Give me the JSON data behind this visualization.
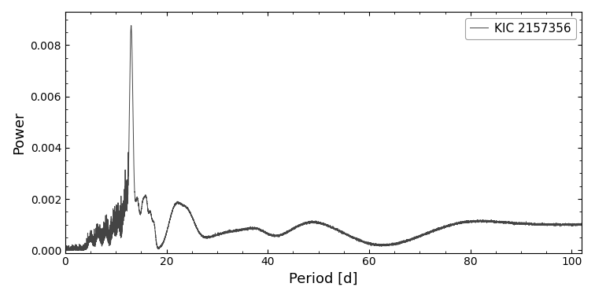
{
  "title": "",
  "xlabel": "Period [d]",
  "ylabel": "Power",
  "legend_label": "KIC 2157356",
  "line_color": "#444444",
  "line_width": 0.7,
  "xlim": [
    0,
    102
  ],
  "ylim": [
    -0.0001,
    0.0093
  ],
  "background_color": "#ffffff",
  "figsize": [
    7.56,
    3.79
  ],
  "dpi": 100
}
